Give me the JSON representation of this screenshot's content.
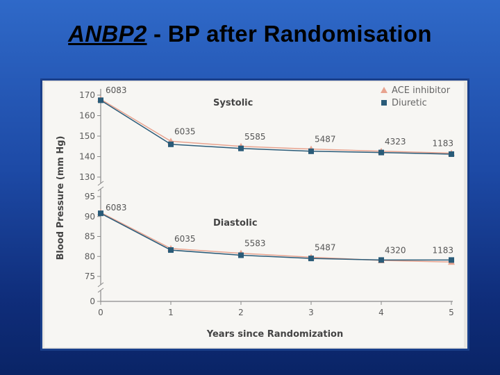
{
  "slide": {
    "title_gene": "ANBP2",
    "title_rest": " - BP after Randomisation"
  },
  "colors": {
    "background_top": "#2f69c8",
    "background_bottom": "#0a2466",
    "ace_inhibitor": "#e8a38f",
    "diuretic": "#2a5b78",
    "axis": "#8a8a8a"
  },
  "chart_data": {
    "type": "line",
    "xlabel": "Years since Randomization",
    "ylabel": "Blood Pressure (mm Hg)",
    "x": [
      0,
      1,
      2,
      3,
      4,
      5
    ],
    "x_ticks": [
      "0",
      "1",
      "2",
      "3",
      "4",
      "5"
    ],
    "xlim": [
      0,
      5
    ],
    "axis_break": true,
    "legend": {
      "placement": "top-right",
      "entries": [
        {
          "label": "ACE inhibitor",
          "marker": "triangle"
        },
        {
          "label": "Diuretic",
          "marker": "square"
        }
      ]
    },
    "panels": [
      {
        "title": "Systolic",
        "y_ticks": [
          130,
          140,
          150,
          160,
          170
        ],
        "ylim": [
          130,
          170
        ],
        "n_labels": [
          "6083",
          "6035",
          "5585",
          "5487",
          "4323",
          "1183"
        ],
        "series": [
          {
            "name": "ACE inhibitor",
            "values": [
              168,
              147.5,
              145,
              143.7,
              142.6,
              141.7
            ]
          },
          {
            "name": "Diuretic",
            "values": [
              167.5,
              146,
              144,
              142.6,
              142,
              141.2
            ]
          }
        ]
      },
      {
        "title": "Diastolic",
        "y_ticks": [
          75,
          80,
          85,
          90,
          95
        ],
        "ylim": [
          75,
          95
        ],
        "n_labels": [
          "6083",
          "6035",
          "5583",
          "5487",
          "4320",
          "1183"
        ],
        "series": [
          {
            "name": "ACE inhibitor",
            "values": [
              91,
              82,
              80.8,
              79.8,
              79,
              78.6
            ]
          },
          {
            "name": "Diuretic",
            "values": [
              90.8,
              81.6,
              80.3,
              79.5,
              79.1,
              79.1
            ]
          }
        ]
      }
    ],
    "zero_tick": "0"
  }
}
